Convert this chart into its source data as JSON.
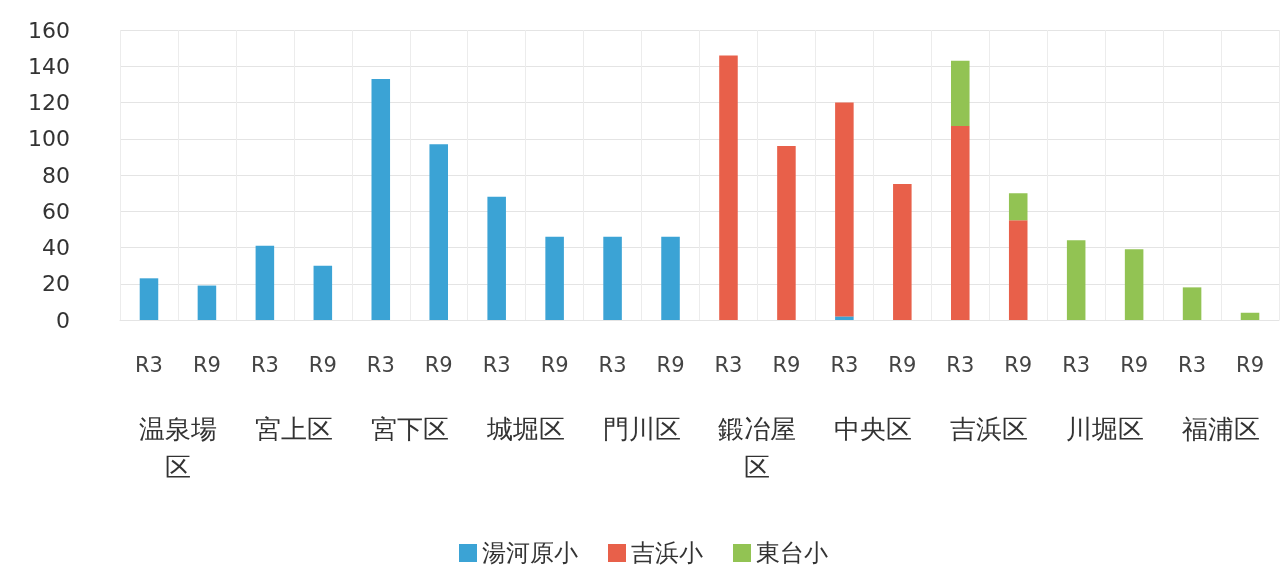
{
  "chart_data": {
    "type": "bar",
    "stacked": true,
    "categories": [
      "R3",
      "R9",
      "R3",
      "R9",
      "R3",
      "R9",
      "R3",
      "R9",
      "R3",
      "R9",
      "R3",
      "R9",
      "R3",
      "R9",
      "R3",
      "R9",
      "R3",
      "R9",
      "R3",
      "R9"
    ],
    "annotations": [
      "温泉場区",
      "宮上区",
      "宮下区",
      "城堀区",
      "門川区",
      "鍛冶屋区",
      "中央区",
      "吉浜区",
      "川堀区",
      "福浦区"
    ],
    "series": [
      {
        "name": "湯河原小",
        "color": "#3ba3d5",
        "values": [
          23,
          19,
          41,
          30,
          133,
          97,
          68,
          46,
          46,
          46,
          null,
          null,
          2,
          null,
          null,
          null,
          null,
          null,
          null,
          null
        ]
      },
      {
        "name": "吉浜小",
        "color": "#e8604a",
        "values": [
          null,
          null,
          null,
          null,
          null,
          null,
          null,
          null,
          null,
          null,
          146,
          96,
          118,
          75,
          107,
          55,
          null,
          null,
          null,
          null
        ]
      },
      {
        "name": "東台小",
        "color": "#92c353",
        "values": [
          null,
          null,
          null,
          null,
          null,
          null,
          null,
          null,
          null,
          null,
          null,
          null,
          null,
          null,
          36,
          15,
          44,
          39,
          18,
          4
        ]
      }
    ],
    "ylim": [
      0,
      160
    ],
    "yticks": [
      0,
      20,
      40,
      60,
      80,
      100,
      120,
      140,
      160
    ],
    "grid": true,
    "legend": "bottom"
  }
}
